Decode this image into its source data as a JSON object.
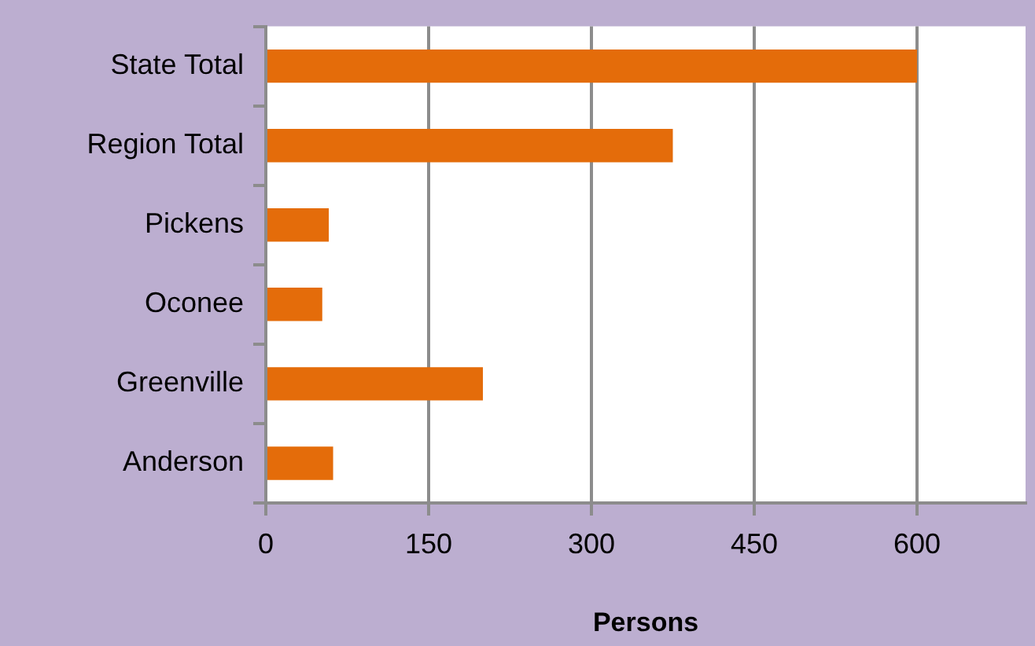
{
  "chart_data": {
    "type": "bar",
    "orientation": "horizontal",
    "xlabel": "Persons",
    "categories": [
      "State Total",
      "Region Total",
      "Pickens",
      "Oconee",
      "Greenville",
      "Anderson"
    ],
    "values": [
      600,
      375,
      58,
      52,
      200,
      62
    ],
    "color": "#e46c0a",
    "xlim": [
      0,
      700
    ],
    "xticks": [
      0,
      150,
      300,
      450,
      600
    ],
    "grid": "x",
    "legend": false
  }
}
